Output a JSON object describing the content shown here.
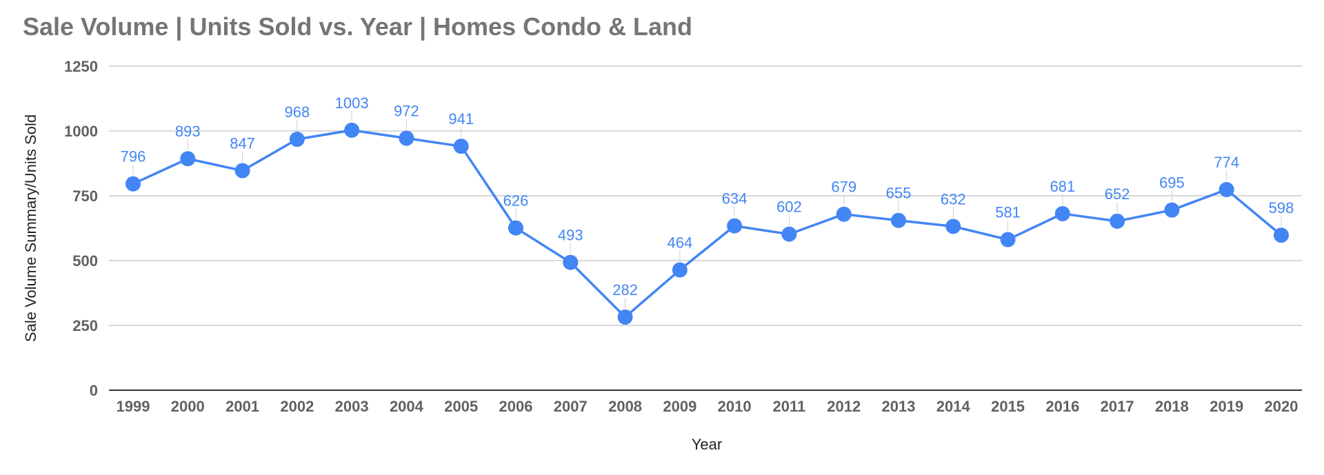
{
  "chart_data": {
    "type": "line",
    "title": "Sale Volume | Units Sold vs. Year | Homes Condo & Land",
    "xlabel": "Year",
    "ylabel": "Sale Volume Summary/Units Sold",
    "ylim": [
      0,
      1250
    ],
    "yticks": [
      0,
      250,
      500,
      750,
      1000,
      1250
    ],
    "grid": true,
    "legend": "none",
    "series_color": "#4285f4",
    "categories": [
      "1999",
      "2000",
      "2001",
      "2002",
      "2003",
      "2004",
      "2005",
      "2006",
      "2007",
      "2008",
      "2009",
      "2010",
      "2011",
      "2012",
      "2013",
      "2014",
      "2015",
      "2016",
      "2017",
      "2018",
      "2019",
      "2020"
    ],
    "values": [
      796,
      893,
      847,
      968,
      1003,
      972,
      941,
      626,
      493,
      282,
      464,
      634,
      602,
      679,
      655,
      632,
      581,
      681,
      652,
      695,
      774,
      598
    ]
  }
}
